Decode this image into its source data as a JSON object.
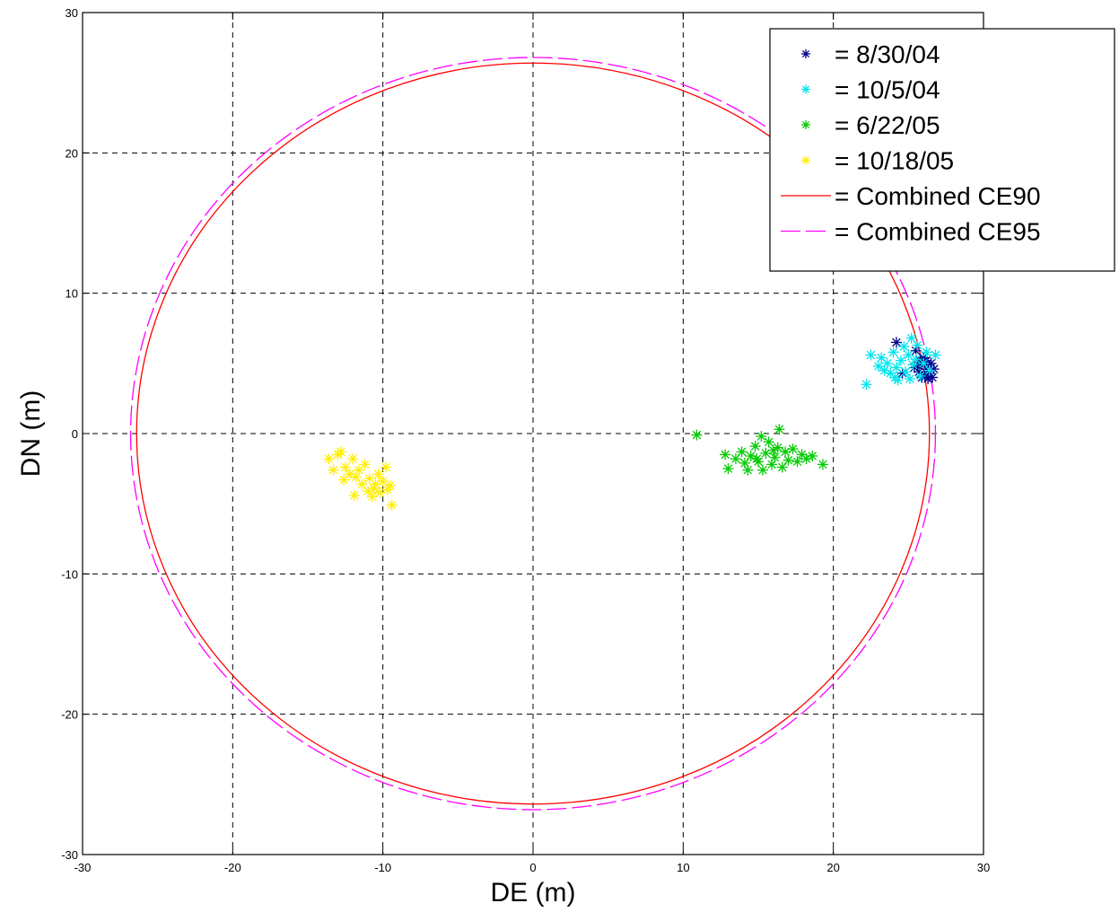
{
  "chart_data": {
    "type": "scatter",
    "title": "",
    "xlabel": "DE (m)",
    "ylabel": "DN (m)",
    "xlim": [
      -30,
      30
    ],
    "ylim": [
      -30,
      30
    ],
    "xticks": [
      -30,
      -20,
      -10,
      0,
      10,
      20,
      30
    ],
    "yticks": [
      -30,
      -20,
      -10,
      0,
      10,
      20,
      30
    ],
    "xtick_labels": [
      "-30",
      "-20",
      "-10",
      "0",
      "10",
      "20",
      "30"
    ],
    "ytick_labels": [
      "-30",
      "-20",
      "-10",
      "0",
      "10",
      "20",
      "30"
    ],
    "grid": true,
    "legend_position": "top-right",
    "series": [
      {
        "name": "= 8/30/04",
        "marker": "*",
        "color": "#00008b",
        "points": [
          [
            24.2,
            6.5
          ],
          [
            25.5,
            5.9
          ],
          [
            25.8,
            5.2
          ],
          [
            26.0,
            4.9
          ],
          [
            26.2,
            4.6
          ],
          [
            26.4,
            4.3
          ],
          [
            26.6,
            4.0
          ],
          [
            26.1,
            4.1
          ],
          [
            25.7,
            4.4
          ],
          [
            25.4,
            4.7
          ],
          [
            26.5,
            5.0
          ],
          [
            26.0,
            5.4
          ],
          [
            25.9,
            4.0
          ],
          [
            26.3,
            3.9
          ],
          [
            24.6,
            4.3
          ],
          [
            26.7,
            4.6
          ],
          [
            25.6,
            4.9
          ],
          [
            26.2,
            5.2
          ]
        ]
      },
      {
        "name": "= 10/5/04",
        "marker": "*",
        "color": "#00e5ee",
        "points": [
          [
            22.2,
            3.5
          ],
          [
            22.5,
            5.6
          ],
          [
            23.0,
            4.8
          ],
          [
            23.2,
            5.4
          ],
          [
            23.6,
            5.0
          ],
          [
            23.8,
            4.3
          ],
          [
            24.0,
            5.8
          ],
          [
            24.2,
            4.7
          ],
          [
            24.3,
            3.8
          ],
          [
            24.5,
            5.2
          ],
          [
            24.7,
            6.2
          ],
          [
            24.8,
            4.4
          ],
          [
            25.0,
            5.6
          ],
          [
            25.1,
            3.9
          ],
          [
            25.2,
            6.8
          ],
          [
            25.3,
            4.9
          ],
          [
            25.5,
            5.3
          ],
          [
            25.6,
            6.3
          ],
          [
            25.8,
            4.1
          ],
          [
            26.0,
            5.0
          ],
          [
            26.2,
            5.8
          ],
          [
            26.4,
            4.5
          ],
          [
            26.8,
            5.6
          ],
          [
            24.1,
            4.0
          ],
          [
            23.4,
            4.5
          ]
        ]
      },
      {
        "name": "= 6/22/05",
        "marker": "*",
        "color": "#00cc00",
        "points": [
          [
            10.9,
            -0.1
          ],
          [
            12.8,
            -1.5
          ],
          [
            13.0,
            -2.5
          ],
          [
            13.5,
            -1.8
          ],
          [
            13.9,
            -1.3
          ],
          [
            14.1,
            -2.1
          ],
          [
            14.3,
            -2.6
          ],
          [
            14.5,
            -1.6
          ],
          [
            14.8,
            -0.9
          ],
          [
            15.0,
            -2.0
          ],
          [
            15.2,
            -0.2
          ],
          [
            15.3,
            -2.6
          ],
          [
            15.5,
            -1.4
          ],
          [
            15.7,
            -0.6
          ],
          [
            15.9,
            -2.2
          ],
          [
            16.1,
            -1.7
          ],
          [
            16.3,
            -1.0
          ],
          [
            16.4,
            0.3
          ],
          [
            16.6,
            -2.4
          ],
          [
            16.8,
            -1.3
          ],
          [
            17.0,
            -1.9
          ],
          [
            17.3,
            -1.1
          ],
          [
            17.6,
            -2.0
          ],
          [
            17.9,
            -1.5
          ],
          [
            18.2,
            -1.8
          ],
          [
            18.6,
            -1.6
          ],
          [
            19.3,
            -2.2
          ],
          [
            16.0,
            -1.2
          ],
          [
            14.9,
            -1.8
          ]
        ]
      },
      {
        "name": "= 10/18/05",
        "marker": "*",
        "color": "#ffee00",
        "points": [
          [
            -13.6,
            -1.8
          ],
          [
            -13.3,
            -2.6
          ],
          [
            -13.0,
            -1.5
          ],
          [
            -12.8,
            -1.3
          ],
          [
            -12.5,
            -2.4
          ],
          [
            -12.2,
            -2.9
          ],
          [
            -12.0,
            -1.8
          ],
          [
            -11.8,
            -3.1
          ],
          [
            -11.6,
            -2.6
          ],
          [
            -11.4,
            -3.6
          ],
          [
            -11.2,
            -2.2
          ],
          [
            -11.0,
            -4.1
          ],
          [
            -10.9,
            -3.2
          ],
          [
            -10.7,
            -4.5
          ],
          [
            -10.5,
            -3.6
          ],
          [
            -10.3,
            -2.9
          ],
          [
            -10.2,
            -4.2
          ],
          [
            -10.0,
            -3.4
          ],
          [
            -9.8,
            -2.4
          ],
          [
            -9.7,
            -4.0
          ],
          [
            -9.5,
            -3.7
          ],
          [
            -9.4,
            -5.1
          ],
          [
            -11.9,
            -4.4
          ],
          [
            -12.6,
            -3.3
          ],
          [
            -10.6,
            -3.9
          ]
        ]
      },
      {
        "name": "= Combined CE90",
        "type": "circle",
        "style": "solid",
        "color": "#ff0000",
        "center": [
          0,
          0
        ],
        "radius": 26.4
      },
      {
        "name": "= Combined CE95",
        "type": "circle",
        "style": "dashed",
        "color": "#ff00ff",
        "center": [
          0,
          0
        ],
        "radius": 26.8
      }
    ]
  }
}
